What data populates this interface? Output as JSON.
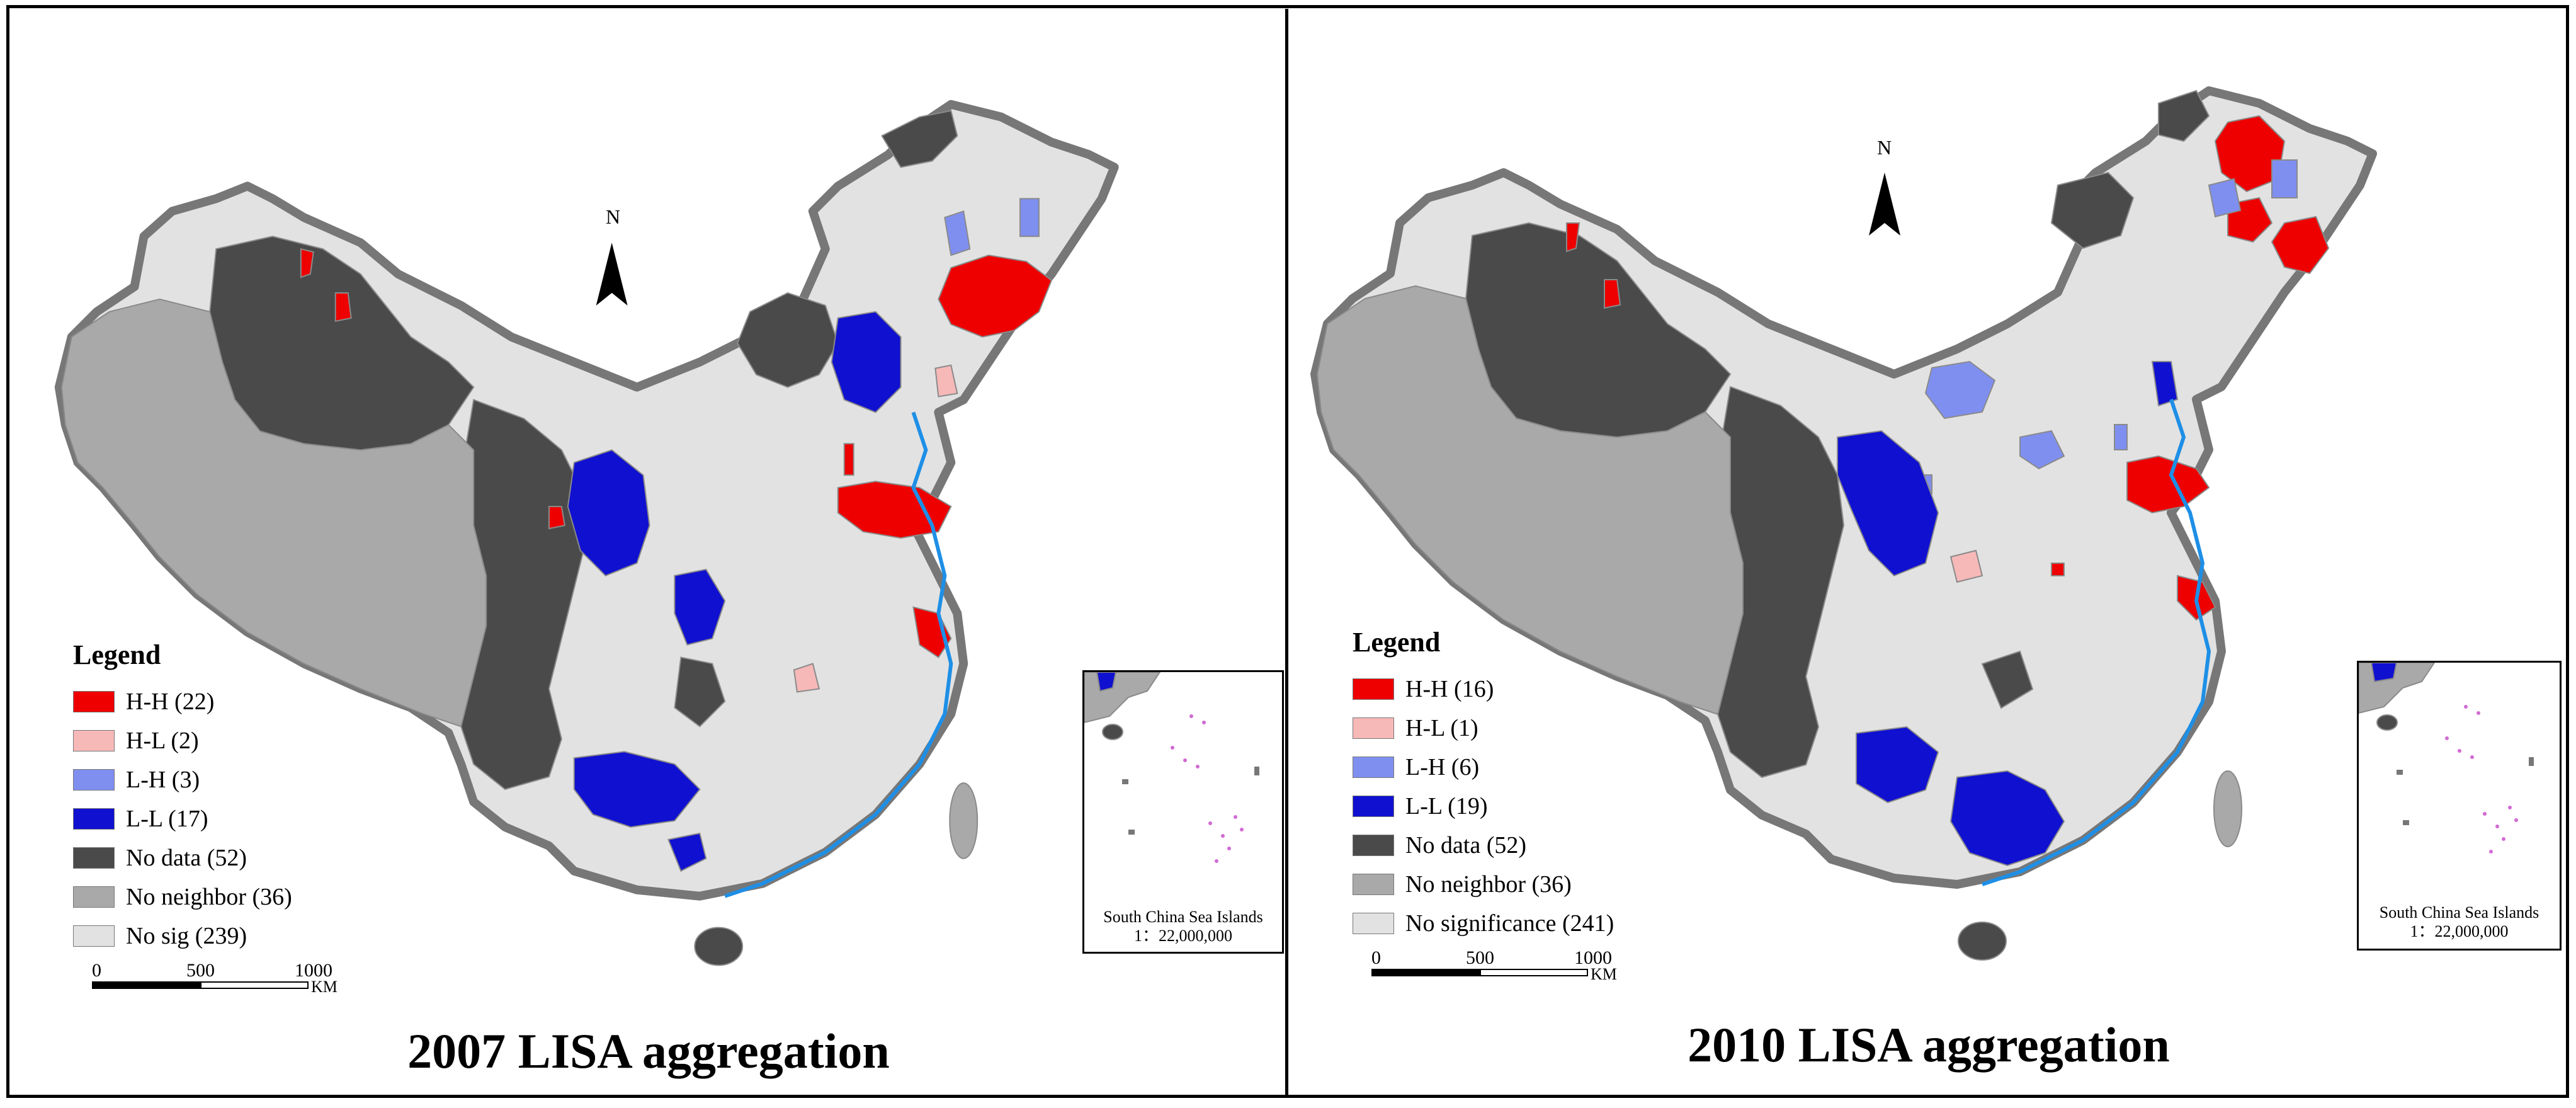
{
  "colors": {
    "hh": "#ee0000",
    "hl": "#f7b8b8",
    "lh": "#7f8ff0",
    "ll": "#1010d0",
    "no_data": "#4a4a4a",
    "no_neighbor": "#a9a9a9",
    "no_sig": "#e2e2e2",
    "coast": "#1e8fe6",
    "boundary": "#8a8a8a"
  },
  "maps": [
    {
      "title": "2007 LISA aggregation",
      "north_label": "N",
      "legend_title": "Legend",
      "legend": [
        {
          "label": "H-H (22)",
          "color_key": "hh"
        },
        {
          "label": "H-L (2)",
          "color_key": "hl"
        },
        {
          "label": "L-H (3)",
          "color_key": "lh"
        },
        {
          "label": "L-L (17)",
          "color_key": "ll"
        },
        {
          "label": "No data (52)",
          "color_key": "no_data"
        },
        {
          "label": "No neighbor (36)",
          "color_key": "no_neighbor"
        },
        {
          "label": "No sig (239)",
          "color_key": "no_sig"
        }
      ],
      "scale": {
        "ticks": [
          "0",
          "500",
          "1000"
        ],
        "unit": "KM"
      },
      "inset": {
        "caption_line1": "South China Sea Islands",
        "caption_line2": "1：22,000,000"
      }
    },
    {
      "title": "2010 LISA aggregation",
      "north_label": "N",
      "legend_title": "Legend",
      "legend": [
        {
          "label": "H-H (16)",
          "color_key": "hh"
        },
        {
          "label": "H-L (1)",
          "color_key": "hl"
        },
        {
          "label": "L-H (6)",
          "color_key": "lh"
        },
        {
          "label": "L-L (19)",
          "color_key": "ll"
        },
        {
          "label": "No data (52)",
          "color_key": "no_data"
        },
        {
          "label": "No neighbor (36)",
          "color_key": "no_neighbor"
        },
        {
          "label": "No significance (241)",
          "color_key": "no_sig"
        }
      ],
      "scale": {
        "ticks": [
          "0",
          "500",
          "1000"
        ],
        "unit": "KM"
      },
      "inset": {
        "caption_line1": "South China Sea Islands",
        "caption_line2": "1：22,000,000"
      }
    }
  ]
}
